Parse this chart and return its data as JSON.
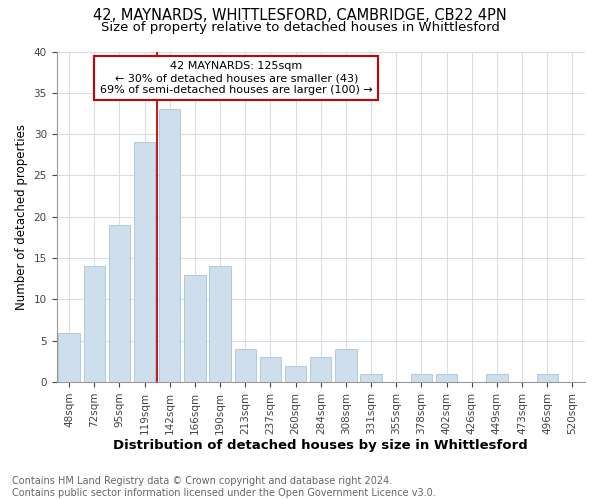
{
  "title1": "42, MAYNARDS, WHITTLESFORD, CAMBRIDGE, CB22 4PN",
  "title2": "Size of property relative to detached houses in Whittlesford",
  "xlabel": "Distribution of detached houses by size in Whittlesford",
  "ylabel": "Number of detached properties",
  "categories": [
    "48sqm",
    "72sqm",
    "95sqm",
    "119sqm",
    "142sqm",
    "166sqm",
    "190sqm",
    "213sqm",
    "237sqm",
    "260sqm",
    "284sqm",
    "308sqm",
    "331sqm",
    "355sqm",
    "378sqm",
    "402sqm",
    "426sqm",
    "449sqm",
    "473sqm",
    "496sqm",
    "520sqm"
  ],
  "values": [
    6,
    14,
    19,
    29,
    33,
    13,
    14,
    4,
    3,
    2,
    3,
    4,
    1,
    0,
    1,
    1,
    0,
    1,
    0,
    1,
    0
  ],
  "bar_color": "#cfdeed",
  "bar_edgecolor": "#aac4d8",
  "vline_x": 3.5,
  "vline_color": "#cc0000",
  "annotation_text": "42 MAYNARDS: 125sqm\n← 30% of detached houses are smaller (43)\n69% of semi-detached houses are larger (100) →",
  "annotation_box_color": "#ffffff",
  "annotation_box_edgecolor": "#cc0000",
  "ylim": [
    0,
    40
  ],
  "yticks": [
    0,
    5,
    10,
    15,
    20,
    25,
    30,
    35,
    40
  ],
  "footer1": "Contains HM Land Registry data © Crown copyright and database right 2024.",
  "footer2": "Contains public sector information licensed under the Open Government Licence v3.0.",
  "background_color": "#ffffff",
  "grid_color": "#d8dde8",
  "title_fontsize": 10.5,
  "subtitle_fontsize": 9.5,
  "tick_fontsize": 7.5,
  "footer_fontsize": 7,
  "ylabel_fontsize": 8.5,
  "xlabel_fontsize": 9.5
}
